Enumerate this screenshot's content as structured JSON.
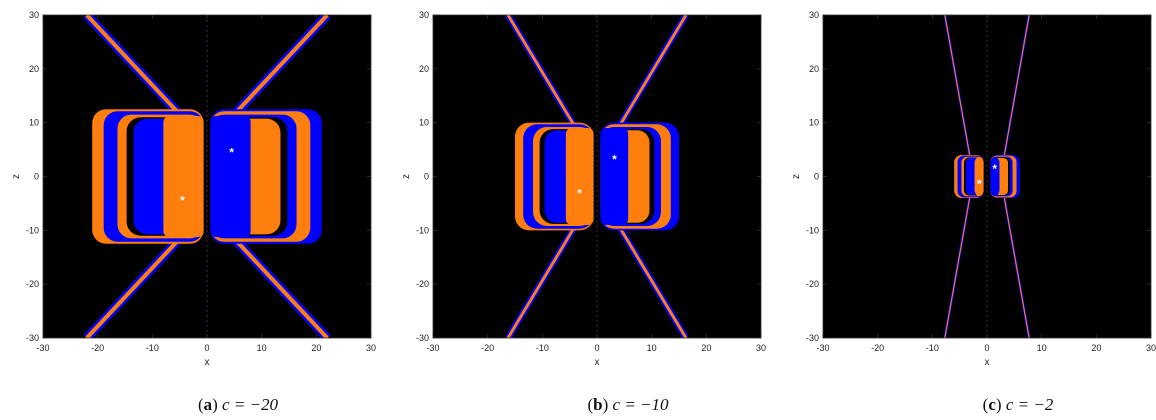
{
  "chart_data": [
    {
      "type": "heatmap",
      "caption": {
        "letter": "a",
        "text": "c = −20"
      },
      "c": -20,
      "xlabel": "x",
      "ylabel": "z",
      "xlim": [
        -30,
        30
      ],
      "ylim": [
        -30,
        30
      ],
      "xticks": [
        "-30",
        "-20",
        "-10",
        "0",
        "10",
        "20",
        "30"
      ],
      "yticks": [
        "30",
        "20",
        "10",
        "0",
        "-10",
        "-20",
        "-30"
      ],
      "basin_extent": {
        "x": 21,
        "z": 12.5
      },
      "equilibria": [
        {
          "x": 4.5,
          "z": 4.5
        },
        {
          "x": -4.5,
          "z": -4.5
        }
      ]
    },
    {
      "type": "heatmap",
      "caption": {
        "letter": "b",
        "text": "c = −10"
      },
      "c": -10,
      "xlabel": "x",
      "ylabel": "z",
      "xlim": [
        -30,
        30
      ],
      "ylim": [
        -30,
        30
      ],
      "xticks": [
        "-30",
        "-20",
        "-10",
        "0",
        "10",
        "20",
        "30"
      ],
      "yticks": [
        "30",
        "20",
        "10",
        "0",
        "-10",
        "-20",
        "-30"
      ],
      "basin_extent": {
        "x": 15,
        "z": 10
      },
      "equilibria": [
        {
          "x": 3.2,
          "z": 3.2
        },
        {
          "x": -3.2,
          "z": -3.2
        }
      ]
    },
    {
      "type": "heatmap",
      "caption": {
        "letter": "c",
        "text": "c = −2"
      },
      "c": -2,
      "xlabel": "x",
      "ylabel": "z",
      "xlim": [
        -30,
        30
      ],
      "ylim": [
        -30,
        30
      ],
      "xticks": [
        "-30",
        "-20",
        "-10",
        "0",
        "10",
        "20",
        "30"
      ],
      "yticks": [
        "30",
        "20",
        "10",
        "0",
        "-10",
        "-20",
        "-30"
      ],
      "basin_extent": {
        "x": 6,
        "z": 4
      },
      "equilibria": [
        {
          "x": 1.4,
          "z": 1.4
        },
        {
          "x": -1.4,
          "z": -1.4
        }
      ]
    }
  ],
  "colors": {
    "background": "#000000",
    "basin_orange": "#ff7f0e",
    "basin_blue": "#0000ff",
    "equilibrium_marker": "#ffffff"
  }
}
